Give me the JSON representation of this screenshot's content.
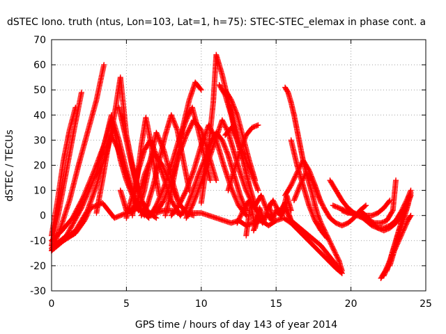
{
  "chart_data": {
    "type": "scatter",
    "title": "dSTEC Iono. truth (ntus, Lon=103, Lat=1, h=75): STEC-STEC_elemax in phase cont. a",
    "xlabel": "GPS time / hours of day 143 of year 2014",
    "ylabel": "dSTEC  / TECUs",
    "xlim": [
      0,
      25
    ],
    "ylim": [
      -30,
      70
    ],
    "xticks": [
      0,
      5,
      10,
      15,
      20,
      25
    ],
    "yticks": [
      -30,
      -20,
      -10,
      0,
      10,
      20,
      30,
      40,
      50,
      60,
      70
    ],
    "grid": true,
    "marker": "+",
    "color": "#ff0000",
    "series": [
      {
        "x": [
          0.0,
          0.5,
          1.0,
          1.5,
          2.0
        ],
        "y": [
          -12,
          2,
          18,
          34,
          49
        ]
      },
      {
        "x": [
          0.0,
          0.4,
          0.8,
          1.2,
          1.6
        ],
        "y": [
          -8,
          6,
          22,
          34,
          43
        ]
      },
      {
        "x": [
          0.0,
          0.6,
          1.2,
          1.8,
          2.4,
          3.0,
          3.5
        ],
        "y": [
          -14,
          -5,
          6,
          20,
          33,
          46,
          60
        ]
      },
      {
        "x": [
          0.0,
          0.7,
          1.4,
          2.1,
          2.8,
          3.5,
          4.0,
          4.3,
          4.6,
          5.0,
          5.4,
          5.8,
          6.2
        ],
        "y": [
          -10,
          -6,
          -1,
          7,
          17,
          28,
          38,
          31,
          22,
          14,
          8,
          3,
          0
        ]
      },
      {
        "x": [
          0.0,
          1.0,
          2.0,
          3.0,
          3.6,
          4.0,
          4.5,
          5.0,
          5.5,
          6.0,
          6.5
        ],
        "y": [
          -13,
          -8,
          3,
          17,
          30,
          40,
          30,
          18,
          8,
          2,
          -1
        ]
      },
      {
        "x": [
          0.0,
          0.8,
          1.6,
          2.4,
          3.0,
          3.5,
          4.0,
          4.4,
          4.8,
          5.2,
          5.6
        ],
        "y": [
          -14,
          -10,
          -6,
          2,
          12,
          22,
          32,
          27,
          20,
          12,
          5
        ]
      },
      {
        "x": [
          0.0,
          0.8,
          1.6,
          2.2,
          2.6,
          3.0,
          3.4,
          3.8,
          4.2,
          4.6,
          5.0,
          5.5,
          6.0,
          6.5,
          7.0,
          7.5,
          8.0,
          8.5,
          9.0,
          9.5,
          10.0,
          10.5,
          11.0,
          11.5,
          12.0,
          12.5,
          13.0,
          13.5,
          14.0,
          14.5,
          15.0,
          15.5,
          16.0,
          16.5,
          17.0,
          17.5,
          18.0,
          18.5,
          19.0,
          19.4
        ],
        "y": [
          -12,
          -10,
          -7,
          -2,
          3,
          4,
          5,
          2,
          -1,
          0,
          1,
          3,
          2,
          1,
          1,
          2,
          2,
          1,
          1,
          1,
          1,
          0,
          -1,
          -2,
          -3,
          -2,
          -4,
          -3,
          -2,
          -4,
          -2,
          -1,
          -3,
          -6,
          -9,
          -12,
          -15,
          -18,
          -21,
          -23
        ]
      },
      {
        "x": [
          3.0,
          3.4,
          3.8,
          4.2,
          4.6,
          5.0,
          5.4,
          5.8,
          6.2,
          6.6
        ],
        "y": [
          1,
          14,
          28,
          40,
          55,
          32,
          20,
          10,
          3,
          0
        ]
      },
      {
        "x": [
          4.5,
          5.0,
          5.5,
          6.0,
          6.5,
          7.0
        ],
        "y": [
          43,
          30,
          16,
          6,
          1,
          -1
        ]
      },
      {
        "x": [
          4.6,
          5.0,
          5.4,
          5.8,
          6.2,
          6.8,
          7.4,
          8.0,
          8.5,
          9.0,
          9.5
        ],
        "y": [
          10,
          2,
          1,
          7,
          16,
          25,
          20,
          12,
          5,
          1,
          0
        ]
      },
      {
        "x": [
          5.0,
          5.4,
          5.8,
          6.2,
          6.6,
          7.0,
          7.5,
          8.0,
          8.6
        ],
        "y": [
          -1,
          8,
          18,
          26,
          30,
          24,
          15,
          6,
          0
        ]
      },
      {
        "x": [
          5.4,
          5.7,
          6.0,
          6.3,
          6.6,
          6.9,
          7.2
        ],
        "y": [
          0,
          14,
          28,
          39,
          30,
          18,
          8
        ]
      },
      {
        "x": [
          5.8,
          6.2,
          6.6,
          7.0,
          7.5,
          8.0,
          8.5
        ],
        "y": [
          2,
          10,
          22,
          33,
          26,
          15,
          5
        ]
      },
      {
        "x": [
          6.0,
          6.4,
          6.8,
          7.2,
          7.6,
          8.0,
          8.4,
          8.8,
          9.2
        ],
        "y": [
          0,
          4,
          12,
          22,
          32,
          40,
          34,
          22,
          10
        ]
      },
      {
        "x": [
          6.6,
          7.0,
          7.5,
          8.0,
          8.5,
          9.0,
          9.4,
          9.8,
          10.2,
          10.6
        ],
        "y": [
          0,
          4,
          11,
          20,
          30,
          38,
          43,
          34,
          24,
          14
        ]
      },
      {
        "x": [
          7.0,
          7.5,
          8.0,
          8.5,
          9.0,
          9.5,
          10.0,
          10.5,
          11.0
        ],
        "y": [
          1,
          6,
          14,
          24,
          32,
          38,
          34,
          24,
          14
        ]
      },
      {
        "x": [
          7.6,
          8.0,
          8.4,
          8.8,
          9.2,
          9.6,
          10.0
        ],
        "y": [
          0,
          10,
          22,
          36,
          46,
          53,
          50
        ]
      },
      {
        "x": [
          8.0,
          8.5,
          9.0,
          9.5,
          10.0,
          10.5,
          11.0,
          11.5,
          12.0,
          12.5,
          13.0
        ],
        "y": [
          0,
          4,
          10,
          18,
          28,
          36,
          30,
          20,
          11,
          4,
          0
        ]
      },
      {
        "x": [
          8.6,
          9.0,
          9.4,
          9.8,
          10.2,
          10.6,
          11.0,
          11.4,
          11.8,
          12.2,
          12.6,
          13.0
        ],
        "y": [
          0,
          3,
          9,
          16,
          22,
          28,
          33,
          30,
          24,
          16,
          8,
          2
        ]
      },
      {
        "x": [
          9.0,
          9.4,
          9.8,
          10.2,
          10.6,
          11.0,
          11.4,
          11.8,
          12.2,
          12.6,
          13.0,
          13.4,
          13.8
        ],
        "y": [
          -1,
          4,
          10,
          17,
          24,
          31,
          38,
          33,
          25,
          17,
          10,
          5,
          1
        ]
      },
      {
        "x": [
          10.0,
          10.4,
          10.8,
          11.0,
          11.4,
          11.8,
          12.2,
          12.6,
          13.0,
          13.4,
          13.8
        ],
        "y": [
          5,
          22,
          45,
          64,
          56,
          46,
          36,
          28,
          22,
          16,
          10
        ]
      },
      {
        "x": [
          11.2,
          11.6,
          12.0,
          12.4,
          12.8,
          13.2
        ],
        "y": [
          52,
          48,
          40,
          30,
          22,
          12
        ]
      },
      {
        "x": [
          11.6,
          12.0,
          12.4,
          12.8,
          13.2,
          13.6
        ],
        "y": [
          50,
          46,
          40,
          31,
          22,
          14
        ]
      },
      {
        "x": [
          11.6,
          12.0,
          12.4,
          12.8,
          13.2,
          13.6,
          14.0
        ],
        "y": [
          32,
          35,
          30,
          22,
          12,
          4,
          -2
        ]
      },
      {
        "x": [
          11.8,
          12.2,
          12.6,
          13.0,
          13.4,
          13.8
        ],
        "y": [
          10,
          18,
          26,
          32,
          35,
          36
        ]
      },
      {
        "x": [
          12.4,
          12.8,
          13.2,
          13.6,
          14.0,
          14.4,
          14.8,
          15.2,
          15.6,
          16.0,
          16.4,
          16.8,
          17.2,
          17.6,
          18.0,
          18.4,
          18.8,
          19.2,
          19.4
        ],
        "y": [
          -3,
          2,
          6,
          4,
          8,
          2,
          6,
          1,
          5,
          -2,
          -4,
          -6,
          -8,
          -10,
          -12,
          -15,
          -18,
          -21,
          -23
        ]
      },
      {
        "x": [
          13.0,
          13.3,
          13.6,
          13.9,
          14.2,
          14.5,
          14.8,
          15.1,
          15.4,
          15.7,
          16.0
        ],
        "y": [
          -8,
          5,
          -5,
          3,
          -2,
          4,
          -1,
          3,
          0,
          8,
          2
        ]
      },
      {
        "x": [
          13.5,
          13.8,
          14.1,
          14.4,
          14.7,
          15.0,
          15.3,
          15.6,
          15.9
        ],
        "y": [
          -6,
          0,
          -3,
          1,
          -2,
          2,
          0,
          3,
          -1
        ]
      },
      {
        "x": [
          15.6,
          15.8,
          16.0,
          16.2,
          16.4,
          16.6,
          16.8,
          17.0,
          17.2,
          17.4,
          17.6,
          17.8,
          18.0,
          18.4,
          18.8,
          19.2,
          19.4
        ],
        "y": [
          51,
          49,
          45,
          40,
          34,
          28,
          22,
          17,
          13,
          9,
          4,
          0,
          -3,
          -8,
          -13,
          -18,
          -22
        ]
      },
      {
        "x": [
          15.6,
          16.0,
          16.4,
          16.8,
          17.2,
          17.6,
          18.0
        ],
        "y": [
          8,
          12,
          17,
          22,
          18,
          12,
          5
        ]
      },
      {
        "x": [
          16.2,
          16.6,
          17.0,
          17.4,
          17.8,
          18.2,
          18.6,
          19.0,
          19.4,
          19.8,
          20.2,
          20.6,
          21.0
        ],
        "y": [
          6,
          12,
          17,
          14,
          8,
          3,
          -1,
          -3,
          -4,
          -3,
          -1,
          2,
          4
        ]
      },
      {
        "x": [
          16.0,
          16.4,
          16.8,
          17.2,
          17.6,
          18.0,
          18.4
        ],
        "y": [
          30,
          20,
          12,
          4,
          -2,
          -6,
          -9
        ]
      },
      {
        "x": [
          18.6,
          19.0,
          19.4,
          19.8,
          20.2,
          20.6,
          21.0,
          21.4,
          21.8,
          22.2,
          22.6
        ],
        "y": [
          14,
          10,
          6,
          3,
          1,
          0,
          0,
          0,
          1,
          3,
          6
        ]
      },
      {
        "x": [
          18.8,
          19.2,
          19.6,
          20.0,
          20.4,
          20.8,
          21.2,
          21.6,
          22.0,
          22.4,
          22.8,
          23.0
        ],
        "y": [
          4,
          3,
          2,
          1,
          0,
          -1,
          -2,
          -3,
          -3,
          -2,
          2,
          14
        ]
      },
      {
        "x": [
          19.4,
          19.8,
          20.2,
          20.6,
          21.0,
          21.4,
          21.8,
          22.2,
          22.6,
          23.0,
          23.4,
          23.8,
          24.0
        ],
        "y": [
          2,
          1,
          1,
          0,
          -2,
          -4,
          -5,
          -5,
          -4,
          -2,
          2,
          7,
          10
        ]
      },
      {
        "x": [
          20.6,
          21.0,
          21.4,
          21.8,
          22.2,
          22.6,
          23.0,
          23.4,
          23.8
        ],
        "y": [
          2,
          0,
          -3,
          -5,
          -6,
          -5,
          -3,
          0,
          6
        ]
      },
      {
        "x": [
          22.0,
          22.3,
          22.6,
          22.9,
          23.2,
          23.5,
          23.8,
          24.0
        ],
        "y": [
          -25,
          -22,
          -18,
          -14,
          -10,
          -6,
          -2,
          0
        ]
      },
      {
        "x": [
          22.2,
          22.5,
          22.8,
          23.1,
          23.4,
          23.7,
          24.0
        ],
        "y": [
          -24,
          -20,
          -14,
          -8,
          -2,
          3,
          8
        ]
      },
      {
        "x": [
          22.4,
          22.7,
          23.0,
          23.3,
          23.6,
          23.9
        ],
        "y": [
          -22,
          -16,
          -10,
          -4,
          2,
          8
        ]
      },
      {
        "x": [
          22.6,
          22.9,
          23.2,
          23.5,
          23.8,
          24.0
        ],
        "y": [
          -20,
          -14,
          -8,
          -2,
          4,
          9
        ]
      }
    ]
  }
}
